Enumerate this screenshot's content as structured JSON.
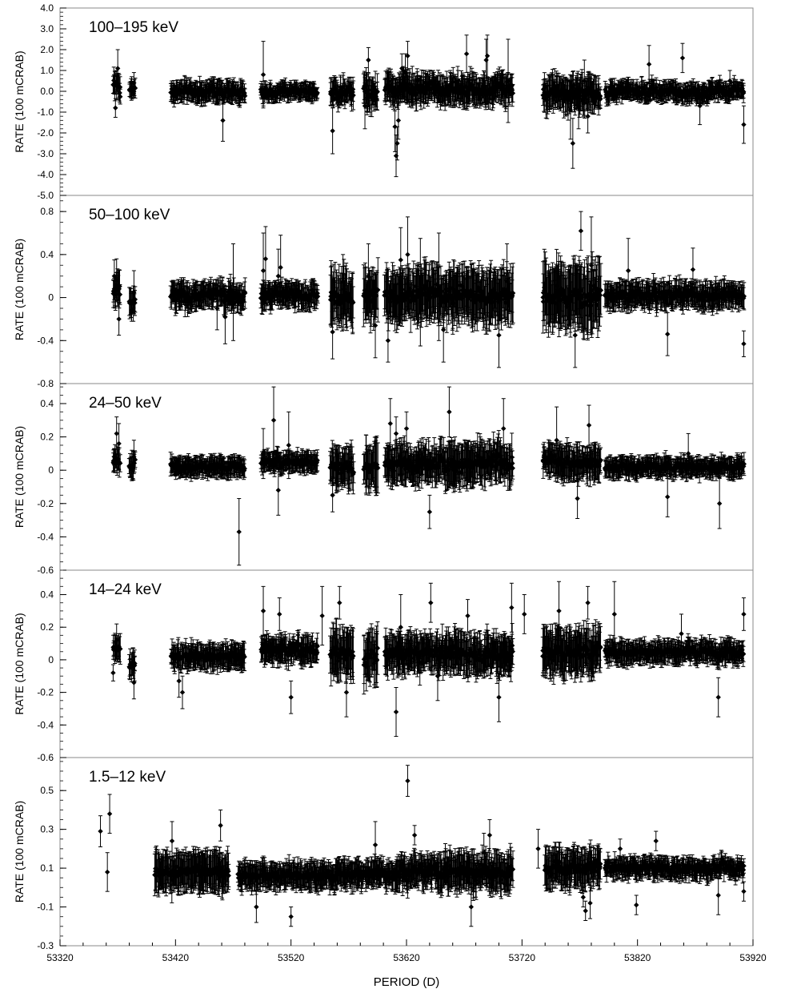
{
  "chart_data": {
    "type": "scatter",
    "xlabel": "PERIOD (D)",
    "xlim": [
      53320,
      53920
    ],
    "xticks": [
      53320,
      53420,
      53520,
      53620,
      53720,
      53820,
      53920
    ],
    "xtick_labels": [
      "53320",
      "53420",
      "53520",
      "53620",
      "53720",
      "53820",
      "53920"
    ],
    "marker_color": "#000000",
    "frame_color": "#888888",
    "error_bars": true,
    "grid": false,
    "panels": [
      {
        "label": "100–195 keV",
        "ylabel": "RATE (100 mCRAB)",
        "ylim": [
          -5.0,
          4.0
        ],
        "yticks": [
          4.0,
          3.0,
          2.0,
          1.0,
          0.0,
          -1.0,
          -2.0,
          -3.0,
          -4.0,
          -5.0
        ],
        "ytick_labels": [
          "4.0",
          "3.0",
          "2.0",
          "1.0",
          "0.0",
          "-1.0",
          "-2.0",
          "-3.0",
          "-4.0",
          "-5.0"
        ],
        "y_minor_step": 0.2,
        "highlights": [
          [
            53368,
            -0.8,
            0.45
          ],
          [
            53369,
            0.3,
            0.7
          ],
          [
            53370,
            1.1,
            0.9
          ],
          [
            53372,
            0.2,
            0.5
          ],
          [
            53382,
            0.2,
            0.5
          ],
          [
            53384,
            0.4,
            0.5
          ],
          [
            53461,
            -1.4,
            1.0
          ],
          [
            53496,
            0.8,
            1.6
          ],
          [
            53556,
            -1.9,
            1.1
          ],
          [
            53587,
            1.5,
            0.6
          ],
          [
            53584,
            -0.7,
            1.1
          ],
          [
            53610,
            -1.7,
            1.2
          ],
          [
            53611,
            -3.1,
            1.0
          ],
          [
            53612,
            -2.5,
            0.8
          ],
          [
            53613,
            -1.4,
            0.9
          ],
          [
            53616,
            1.1,
            0.7
          ],
          [
            53619,
            0.9,
            0.9
          ],
          [
            53621,
            1.7,
            0.7
          ],
          [
            53625,
            0.2,
            1.0
          ],
          [
            53672,
            1.8,
            0.9
          ],
          [
            53689,
            1.5,
            1.0
          ],
          [
            53690,
            1.7,
            1.0
          ],
          [
            53708,
            0.5,
            2.0
          ],
          [
            53762,
            -0.9,
            1.4
          ],
          [
            53764,
            -2.5,
            1.2
          ],
          [
            53769,
            -0.7,
            1.1
          ],
          [
            53774,
            0.5,
            1.0
          ],
          [
            53777,
            -1.2,
            0.8
          ],
          [
            53830,
            1.3,
            0.9
          ],
          [
            53859,
            1.6,
            0.7
          ],
          [
            53874,
            -0.7,
            0.9
          ],
          [
            53912,
            -1.6,
            0.9
          ],
          [
            53900,
            0.5,
            0.5
          ],
          [
            53905,
            0.1,
            0.4
          ]
        ],
        "segments": [
          [
            53366,
            53372,
            0.2,
            0.6,
            0.6
          ],
          [
            53380,
            53385,
            0.1,
            0.3,
            0.4
          ],
          [
            53416,
            53480,
            0.0,
            0.45,
            0.5
          ],
          [
            53494,
            53543,
            -0.05,
            0.45,
            0.4
          ],
          [
            53554,
            53574,
            0.0,
            0.6,
            0.6
          ],
          [
            53583,
            53595,
            0.0,
            0.8,
            0.8
          ],
          [
            53601,
            53712,
            0.1,
            0.7,
            0.7
          ],
          [
            53738,
            53788,
            -0.1,
            0.8,
            0.8
          ],
          [
            53792,
            53912,
            0.0,
            0.45,
            0.45
          ]
        ]
      },
      {
        "label": "50–100 keV",
        "ylabel": "RATE (100 mCRAB)",
        "ylim": [
          -0.8,
          0.95
        ],
        "yticks": [
          0.8,
          0.4,
          0,
          -0.4,
          -0.8
        ],
        "ytick_labels": [
          "0.8",
          "0.4",
          "0",
          "-0.4",
          "-0.8"
        ],
        "y_minor_step": 0.1,
        "highlights": [
          [
            53367,
            0.2,
            0.15
          ],
          [
            53369,
            0.16,
            0.2
          ],
          [
            53371,
            -0.2,
            0.15
          ],
          [
            53382,
            -0.12,
            0.1
          ],
          [
            53384,
            0.05,
            0.2
          ],
          [
            53456,
            -0.1,
            0.2
          ],
          [
            53463,
            -0.18,
            0.25
          ],
          [
            53470,
            0.05,
            0.45
          ],
          [
            53496,
            0.25,
            0.35
          ],
          [
            53498,
            0.36,
            0.3
          ],
          [
            53509,
            0.2,
            0.25
          ],
          [
            53511,
            0.28,
            0.3
          ],
          [
            53556,
            -0.32,
            0.25
          ],
          [
            53565,
            0.15,
            0.25
          ],
          [
            53587,
            0.2,
            0.3
          ],
          [
            53593,
            -0.26,
            0.3
          ],
          [
            53604,
            -0.4,
            0.2
          ],
          [
            53615,
            0.35,
            0.3
          ],
          [
            53621,
            0.4,
            0.35
          ],
          [
            53632,
            0.05,
            0.5
          ],
          [
            53648,
            0.1,
            0.5
          ],
          [
            53652,
            -0.3,
            0.3
          ],
          [
            53700,
            -0.35,
            0.3
          ],
          [
            53707,
            0.15,
            0.35
          ],
          [
            53766,
            -0.35,
            0.3
          ],
          [
            53771,
            0.62,
            0.18
          ],
          [
            53780,
            0.3,
            0.45
          ],
          [
            53812,
            0.25,
            0.3
          ],
          [
            53846,
            -0.34,
            0.2
          ],
          [
            53868,
            0.26,
            0.2
          ],
          [
            53912,
            -0.43,
            0.12
          ]
        ],
        "segments": [
          [
            53366,
            53372,
            0.05,
            0.15,
            0.15
          ],
          [
            53380,
            53385,
            -0.05,
            0.1,
            0.15
          ],
          [
            53416,
            53480,
            0.02,
            0.12,
            0.12
          ],
          [
            53494,
            53543,
            0.02,
            0.1,
            0.12
          ],
          [
            53554,
            53574,
            0.0,
            0.15,
            0.25
          ],
          [
            53583,
            53595,
            0.0,
            0.2,
            0.25
          ],
          [
            53601,
            53712,
            0.03,
            0.17,
            0.25
          ],
          [
            53738,
            53788,
            0.02,
            0.2,
            0.3
          ],
          [
            53792,
            53912,
            0.02,
            0.1,
            0.12
          ]
        ]
      },
      {
        "label": "24–50 keV",
        "ylabel": "RATE (100 mCRAB)",
        "ylim": [
          -0.6,
          0.52
        ],
        "yticks": [
          0.4,
          0.2,
          0,
          -0.2,
          -0.4,
          -0.6
        ],
        "ytick_labels": [
          "0.4",
          "0.2",
          "0",
          "-0.2",
          "-0.4",
          "-0.6"
        ],
        "y_minor_step": 0.05,
        "highlights": [
          [
            53367,
            0.08,
            0.05
          ],
          [
            53369,
            0.22,
            0.1
          ],
          [
            53371,
            0.16,
            0.12
          ],
          [
            53383,
            0.0,
            0.05
          ],
          [
            53384,
            0.08,
            0.1
          ],
          [
            53475,
            -0.37,
            0.2
          ],
          [
            53496,
            0.1,
            0.15
          ],
          [
            53505,
            0.3,
            0.2
          ],
          [
            53509,
            -0.12,
            0.15
          ],
          [
            53518,
            0.15,
            0.2
          ],
          [
            53556,
            -0.15,
            0.1
          ],
          [
            53606,
            0.28,
            0.15
          ],
          [
            53611,
            0.22,
            0.1
          ],
          [
            53620,
            0.25,
            0.1
          ],
          [
            53640,
            -0.25,
            0.1
          ],
          [
            53657,
            0.35,
            0.15
          ],
          [
            53662,
            0.05,
            0.15
          ],
          [
            53704,
            0.25,
            0.18
          ],
          [
            53750,
            0.18,
            0.2
          ],
          [
            53768,
            -0.17,
            0.12
          ],
          [
            53778,
            0.27,
            0.12
          ],
          [
            53846,
            -0.16,
            0.12
          ],
          [
            53864,
            0.1,
            0.12
          ],
          [
            53891,
            -0.2,
            0.15
          ]
        ],
        "segments": [
          [
            53366,
            53372,
            0.06,
            0.05,
            0.08
          ],
          [
            53380,
            53385,
            0.03,
            0.05,
            0.08
          ],
          [
            53416,
            53480,
            0.02,
            0.05,
            0.06
          ],
          [
            53494,
            53543,
            0.05,
            0.04,
            0.06
          ],
          [
            53554,
            53574,
            0.02,
            0.08,
            0.12
          ],
          [
            53583,
            53595,
            0.02,
            0.1,
            0.15
          ],
          [
            53601,
            53712,
            0.04,
            0.09,
            0.12
          ],
          [
            53738,
            53788,
            0.05,
            0.08,
            0.1
          ],
          [
            53792,
            53912,
            0.02,
            0.05,
            0.06
          ]
        ]
      },
      {
        "label": "14–24 keV",
        "ylabel": "RATE (100 mCRAB)",
        "ylim": [
          -0.6,
          0.55
        ],
        "yticks": [
          0.4,
          0.2,
          0,
          -0.2,
          -0.4,
          -0.6
        ],
        "ytick_labels": [
          "0.4",
          "0.2",
          "0",
          "-0.2",
          "-0.4",
          "-0.6"
        ],
        "y_minor_step": 0.05,
        "highlights": [
          [
            53366,
            -0.08,
            0.05
          ],
          [
            53369,
            0.12,
            0.1
          ],
          [
            53384,
            -0.14,
            0.1
          ],
          [
            53423,
            -0.13,
            0.1
          ],
          [
            53426,
            -0.2,
            0.1
          ],
          [
            53496,
            0.3,
            0.15
          ],
          [
            53510,
            0.28,
            0.1
          ],
          [
            53520,
            -0.23,
            0.1
          ],
          [
            53547,
            0.27,
            0.18
          ],
          [
            53562,
            0.35,
            0.1
          ],
          [
            53568,
            -0.2,
            0.15
          ],
          [
            53611,
            -0.32,
            0.15
          ],
          [
            53615,
            0.2,
            0.2
          ],
          [
            53641,
            0.35,
            0.12
          ],
          [
            53647,
            -0.1,
            0.15
          ],
          [
            53673,
            0.27,
            0.1
          ],
          [
            53700,
            -0.23,
            0.15
          ],
          [
            53711,
            0.32,
            0.15
          ],
          [
            53722,
            0.28,
            0.12
          ],
          [
            53752,
            0.3,
            0.18
          ],
          [
            53777,
            0.35,
            0.1
          ],
          [
            53800,
            0.28,
            0.2
          ],
          [
            53858,
            0.16,
            0.12
          ],
          [
            53890,
            -0.23,
            0.12
          ],
          [
            53912,
            0.28,
            0.1
          ]
        ],
        "segments": [
          [
            53366,
            53372,
            0.08,
            0.05,
            0.08
          ],
          [
            53380,
            53385,
            -0.02,
            0.05,
            0.08
          ],
          [
            53416,
            53480,
            0.02,
            0.05,
            0.08
          ],
          [
            53494,
            53543,
            0.06,
            0.07,
            0.08
          ],
          [
            53554,
            53574,
            0.03,
            0.1,
            0.15
          ],
          [
            53583,
            53595,
            0.02,
            0.12,
            0.15
          ],
          [
            53601,
            53712,
            0.04,
            0.09,
            0.12
          ],
          [
            53738,
            53788,
            0.05,
            0.1,
            0.14
          ],
          [
            53792,
            53912,
            0.05,
            0.06,
            0.07
          ]
        ]
      },
      {
        "label": "1.5–12 keV",
        "ylabel": "RATE (100 mCRAB)",
        "ylim": [
          -0.3,
          0.67
        ],
        "yticks": [
          0.5,
          0.3,
          0.1,
          -0.1,
          -0.3
        ],
        "ytick_labels": [
          "0.5",
          "0.3",
          "0.1",
          "-0.1",
          "-0.3"
        ],
        "y_minor_step": 0.05,
        "highlights": [
          [
            53355,
            0.29,
            0.08
          ],
          [
            53361,
            0.08,
            0.1
          ],
          [
            53363,
            0.38,
            0.1
          ],
          [
            53459,
            0.32,
            0.08
          ],
          [
            53417,
            0.24,
            0.1
          ],
          [
            53490,
            -0.1,
            0.08
          ],
          [
            53520,
            -0.15,
            0.05
          ],
          [
            53593,
            0.22,
            0.12
          ],
          [
            53621,
            0.55,
            0.08
          ],
          [
            53627,
            0.27,
            0.05
          ],
          [
            53676,
            -0.1,
            0.1
          ],
          [
            53687,
            0.18,
            0.1
          ],
          [
            53692,
            0.27,
            0.08
          ],
          [
            53734,
            0.2,
            0.1
          ],
          [
            53773,
            -0.05,
            0.05
          ],
          [
            53775,
            -0.12,
            0.05
          ],
          [
            53779,
            -0.08,
            0.08
          ],
          [
            53805,
            0.2,
            0.05
          ],
          [
            53819,
            -0.09,
            0.05
          ],
          [
            53836,
            0.24,
            0.05
          ],
          [
            53890,
            -0.04,
            0.1
          ],
          [
            53912,
            -0.02,
            0.05
          ]
        ],
        "segments": [
          [
            53402,
            53466,
            0.08,
            0.06,
            0.1
          ],
          [
            53474,
            53560,
            0.06,
            0.05,
            0.07
          ],
          [
            53560,
            53612,
            0.07,
            0.06,
            0.07
          ],
          [
            53612,
            53646,
            0.08,
            0.07,
            0.08
          ],
          [
            53646,
            53712,
            0.08,
            0.08,
            0.1
          ],
          [
            53740,
            53788,
            0.1,
            0.08,
            0.1
          ],
          [
            53792,
            53912,
            0.1,
            0.06,
            0.05
          ]
        ]
      }
    ]
  }
}
